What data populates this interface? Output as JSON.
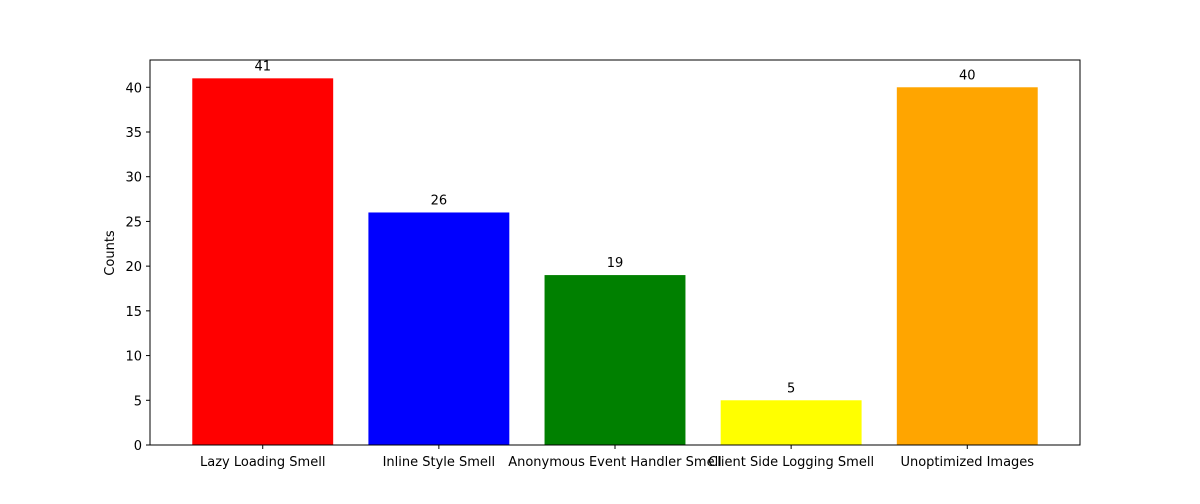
{
  "chart_data": {
    "type": "bar",
    "title": "",
    "xlabel": "",
    "ylabel": "Counts",
    "categories": [
      "Lazy Loading Smell",
      "Inline Style Smell",
      "Anonymous Event Handler Smell",
      "Client Side Logging Smell",
      "Unoptimized Images"
    ],
    "values": [
      41,
      26,
      19,
      5,
      40
    ],
    "colors": [
      "#ff0000",
      "#0000ff",
      "#008000",
      "#ffff00",
      "#ffa500"
    ],
    "ylim": [
      0,
      43.05
    ],
    "yticks": [
      0,
      5,
      10,
      15,
      20,
      25,
      30,
      35,
      40
    ],
    "grid": false,
    "legend": "none"
  }
}
